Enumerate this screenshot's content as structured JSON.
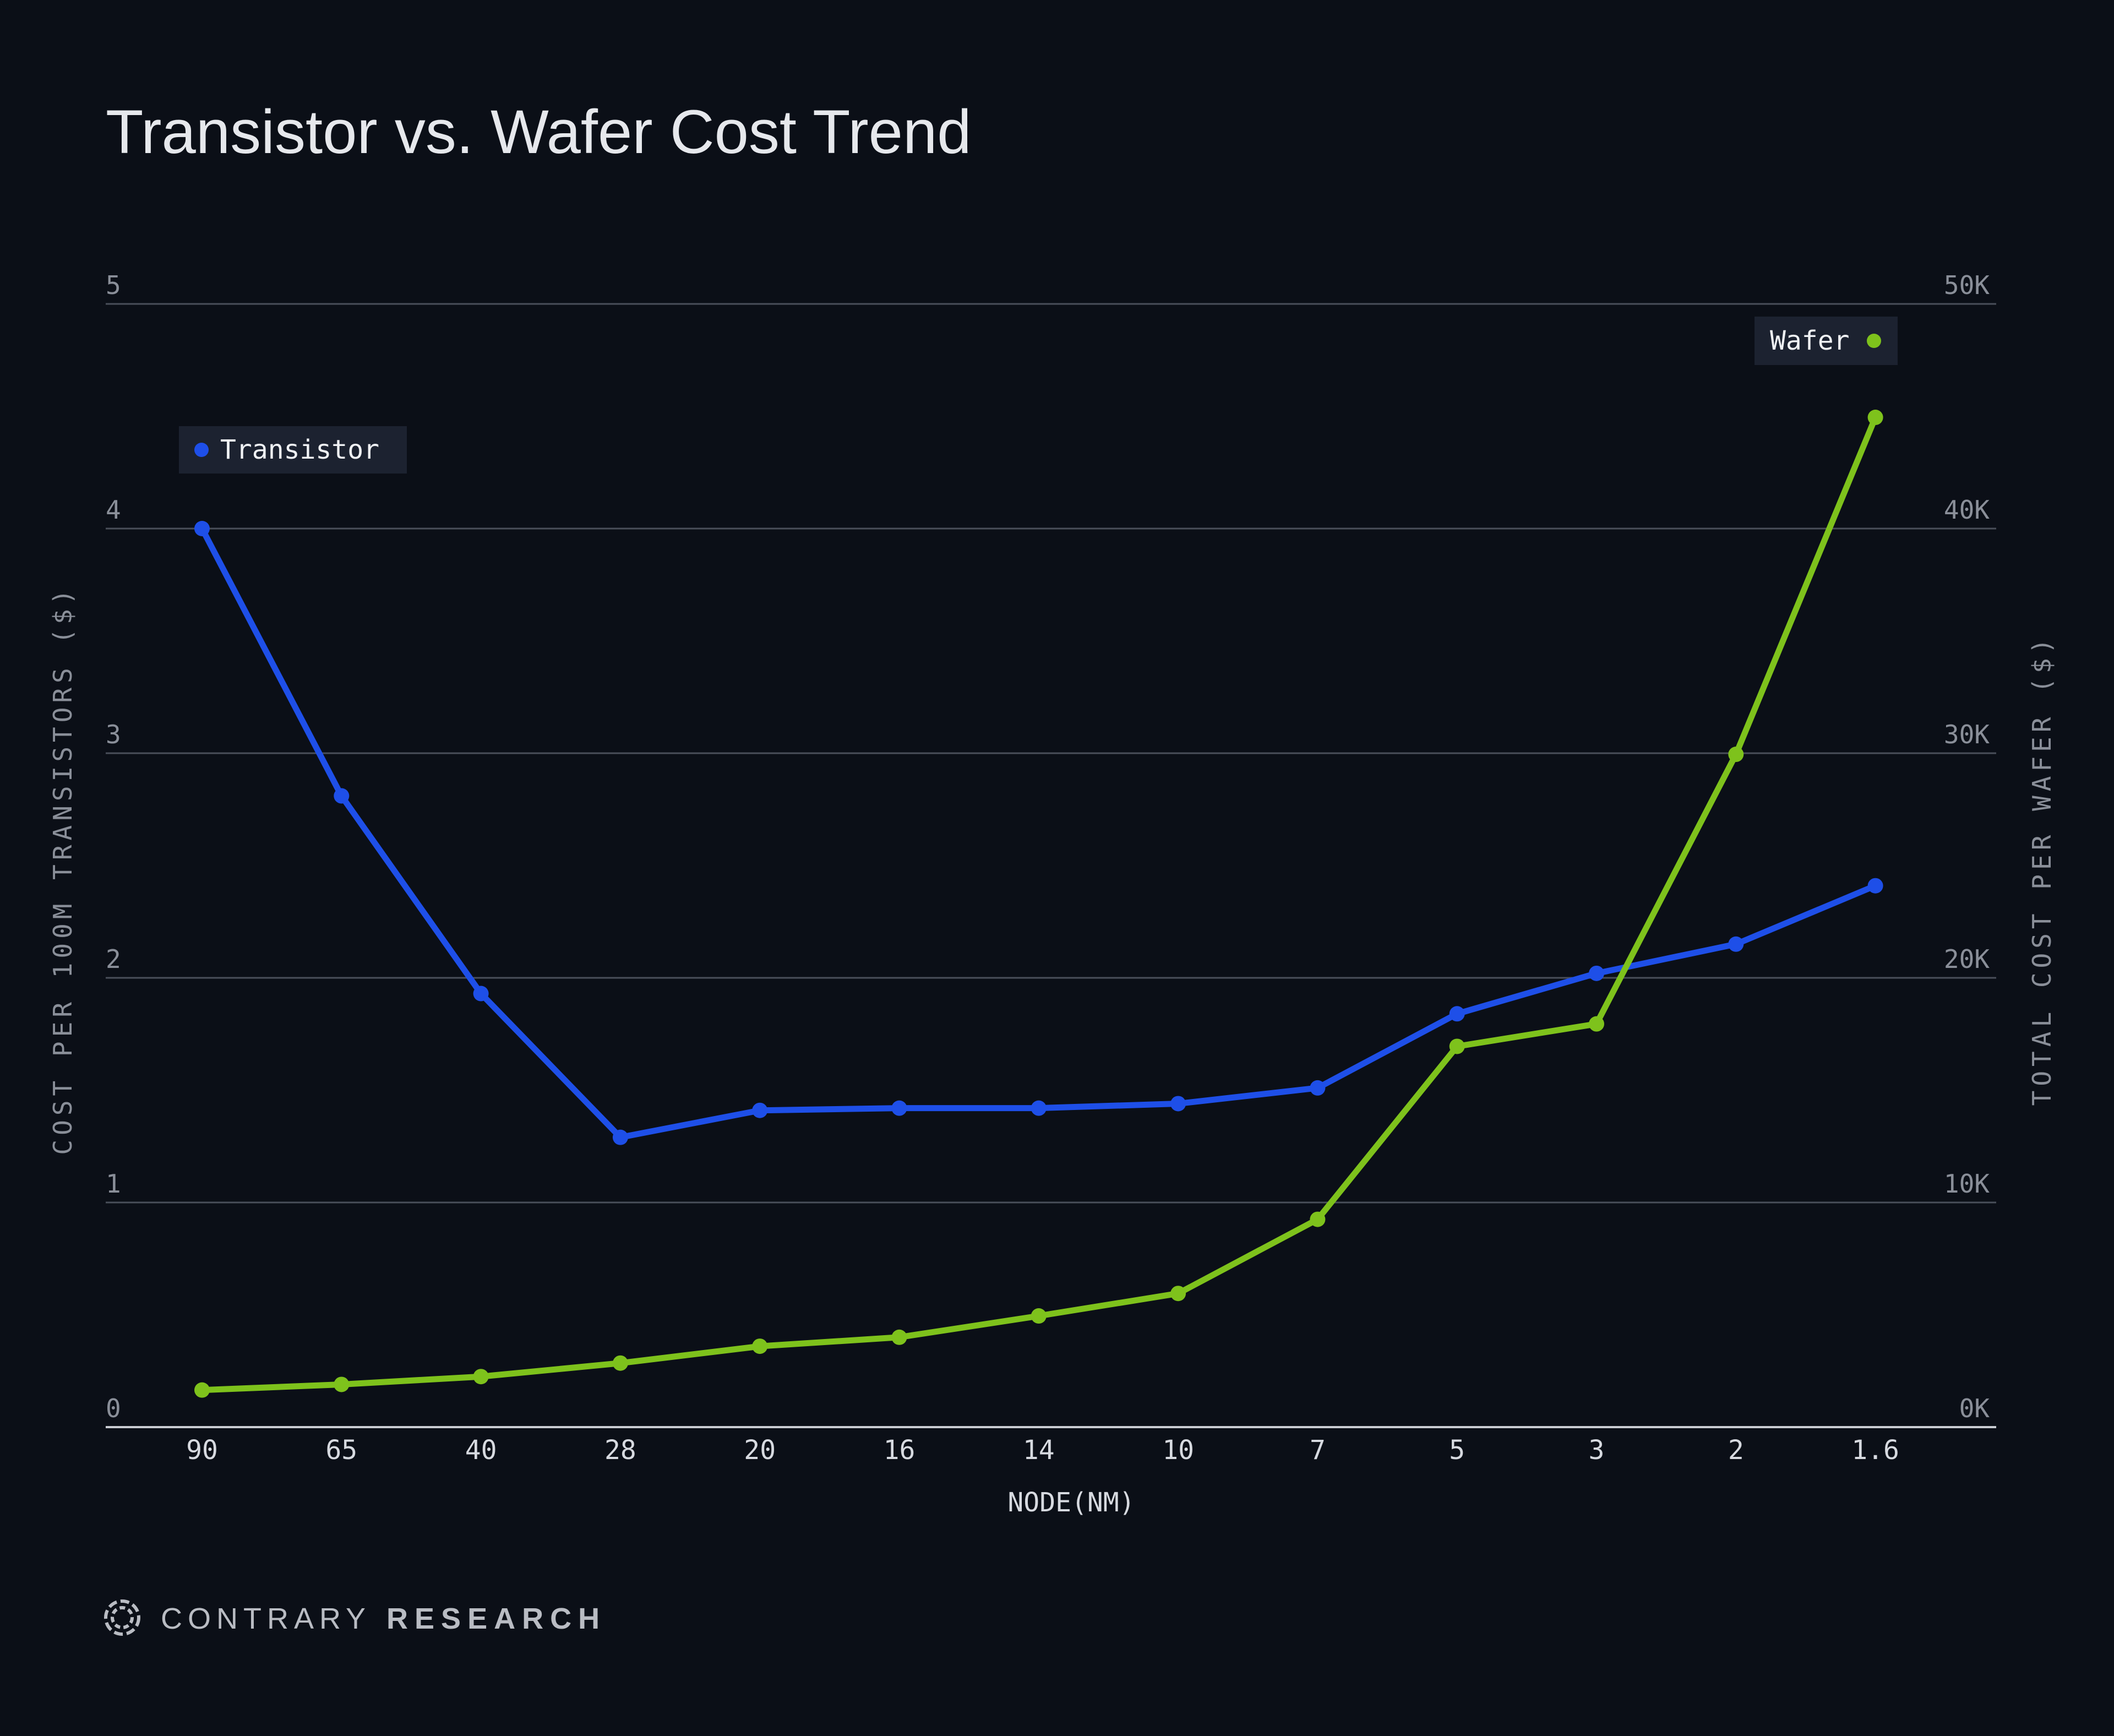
{
  "title": "Transistor vs. Wafer Cost Trend",
  "brand": {
    "light": "CONTRARY",
    "bold": "RESEARCH"
  },
  "colors": {
    "background": "#0b0f17",
    "transistor": "#1e4fe8",
    "wafer": "#7ec21c",
    "grid": "#4a4f5a"
  },
  "chart_data": {
    "type": "line",
    "title": "Transistor vs. Wafer Cost Trend",
    "xlabel": "NODE(NM)",
    "ylabel_left": "COST PER 100M TRANSISTORS ($)",
    "ylabel_right": "TOTAL COST PER WAFER ($)",
    "categories": [
      "90",
      "65",
      "40",
      "28",
      "20",
      "16",
      "14",
      "10",
      "7",
      "5",
      "3",
      "2",
      "1.6"
    ],
    "y_left_ticks": [
      "0",
      "1",
      "2",
      "3",
      "4",
      "5"
    ],
    "y_right_ticks": [
      "0K",
      "10K",
      "20K",
      "30K",
      "40K",
      "50K"
    ],
    "ylim_left": [
      0,
      5
    ],
    "ylim_right": [
      0,
      50000
    ],
    "grid": true,
    "series": [
      {
        "name": "Transistor",
        "axis": "left",
        "color": "#1e4fe8",
        "legend_position": "top-left",
        "values": [
          4.0,
          2.81,
          1.93,
          1.29,
          1.41,
          1.42,
          1.42,
          1.44,
          1.51,
          1.84,
          2.02,
          2.15,
          2.41
        ]
      },
      {
        "name": "Wafer",
        "axis": "right",
        "color": "#7ec21c",
        "legend_position": "top-right",
        "values": [
          1650,
          1900,
          2250,
          2850,
          3600,
          4000,
          4950,
          5950,
          9250,
          16950,
          17950,
          29950,
          44950
        ]
      }
    ]
  }
}
